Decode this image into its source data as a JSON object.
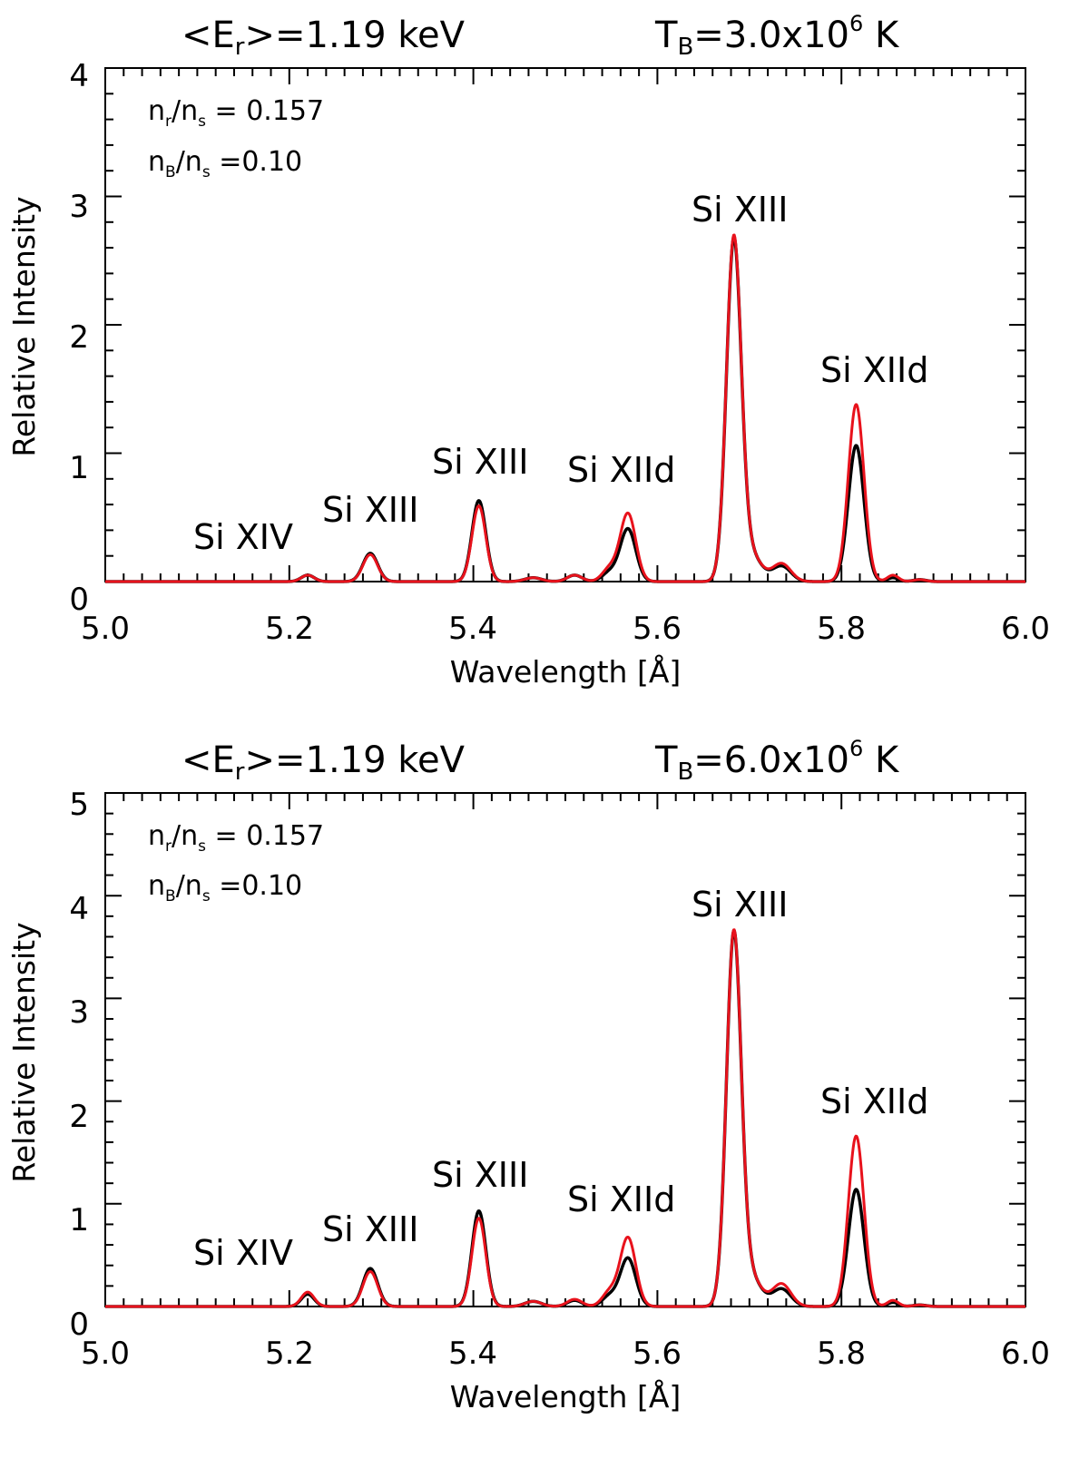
{
  "chart_data": [
    {
      "type": "line",
      "title": {
        "left_base": "<E",
        "left_sub": "r",
        "left_rest": ">=1.19 keV",
        "right_base": "T",
        "right_sub": "B",
        "right_mid": "=3.0x10",
        "right_sup": "6",
        "right_rest": " K"
      },
      "xlabel": "Wavelength [Å]",
      "ylabel": "Relative Intensity",
      "xlim": [
        5.0,
        6.0
      ],
      "ylim": [
        0,
        4
      ],
      "xticks": [
        "5.0",
        "5.2",
        "5.4",
        "5.6",
        "5.8",
        "6.0"
      ],
      "yticks": [
        "0",
        "1",
        "2",
        "3",
        "4"
      ],
      "annotations": [
        {
          "num": "n",
          "num_sub": "r",
          "den": "n",
          "den_sub": "s",
          "value": " = 0.157"
        },
        {
          "num": "n",
          "num_sub": "B",
          "den": "n",
          "den_sub": "s",
          "value": " =0.10"
        }
      ],
      "line_labels": [
        "Si XIV",
        "Si XIII",
        "Si XIII",
        "Si XIId",
        "Si XIII",
        "Si XIId"
      ],
      "series": [
        {
          "name": "black",
          "color": "#000000",
          "peaks": [
            [
              5.22,
              0.05,
              0.007
            ],
            [
              5.288,
              0.22,
              0.008
            ],
            [
              5.406,
              0.63,
              0.0075
            ],
            [
              5.465,
              0.03,
              0.009
            ],
            [
              5.51,
              0.05,
              0.008
            ],
            [
              5.548,
              0.07,
              0.008
            ],
            [
              5.568,
              0.41,
              0.0085
            ],
            [
              5.683,
              2.6,
              0.008
            ],
            [
              5.7,
              0.22,
              0.012
            ],
            [
              5.735,
              0.12,
              0.01
            ],
            [
              5.816,
              1.06,
              0.0085
            ],
            [
              5.856,
              0.03,
              0.006
            ],
            [
              5.885,
              0.015,
              0.007
            ]
          ]
        },
        {
          "name": "red",
          "color": "#e8121c",
          "peaks": [
            [
              5.22,
              0.05,
              0.007
            ],
            [
              5.288,
              0.21,
              0.008
            ],
            [
              5.406,
              0.59,
              0.0075
            ],
            [
              5.465,
              0.03,
              0.009
            ],
            [
              5.51,
              0.05,
              0.008
            ],
            [
              5.548,
              0.1,
              0.008
            ],
            [
              5.568,
              0.53,
              0.0085
            ],
            [
              5.683,
              2.62,
              0.008
            ],
            [
              5.7,
              0.22,
              0.012
            ],
            [
              5.735,
              0.14,
              0.01
            ],
            [
              5.816,
              1.38,
              0.0085
            ],
            [
              5.856,
              0.05,
              0.006
            ],
            [
              5.885,
              0.015,
              0.007
            ]
          ]
        }
      ]
    },
    {
      "type": "line",
      "title": {
        "left_base": "<E",
        "left_sub": "r",
        "left_rest": ">=1.19 keV",
        "right_base": "T",
        "right_sub": "B",
        "right_mid": "=6.0x10",
        "right_sup": "6",
        "right_rest": " K"
      },
      "xlabel": "Wavelength [Å]",
      "ylabel": "Relative Intensity",
      "xlim": [
        5.0,
        6.0
      ],
      "ylim": [
        0,
        5
      ],
      "xticks": [
        "5.0",
        "5.2",
        "5.4",
        "5.6",
        "5.8",
        "6.0"
      ],
      "yticks": [
        "0",
        "1",
        "2",
        "3",
        "4",
        "5"
      ],
      "annotations": [
        {
          "num": "n",
          "num_sub": "r",
          "den": "n",
          "den_sub": "s",
          "value": " = 0.157"
        },
        {
          "num": "n",
          "num_sub": "B",
          "den": "n",
          "den_sub": "s",
          "value": " =0.10"
        }
      ],
      "line_labels": [
        "Si XIV",
        "Si XIII",
        "Si XIII",
        "Si XIId",
        "Si XIII",
        "Si XIId"
      ],
      "series": [
        {
          "name": "black",
          "color": "#000000",
          "peaks": [
            [
              5.22,
              0.12,
              0.007
            ],
            [
              5.288,
              0.37,
              0.008
            ],
            [
              5.406,
              0.93,
              0.0075
            ],
            [
              5.465,
              0.05,
              0.009
            ],
            [
              5.51,
              0.06,
              0.008
            ],
            [
              5.548,
              0.1,
              0.008
            ],
            [
              5.568,
              0.47,
              0.0085
            ],
            [
              5.683,
              3.55,
              0.008
            ],
            [
              5.7,
              0.3,
              0.012
            ],
            [
              5.735,
              0.17,
              0.01
            ],
            [
              5.816,
              1.14,
              0.0085
            ],
            [
              5.856,
              0.04,
              0.006
            ],
            [
              5.885,
              0.015,
              0.007
            ]
          ]
        },
        {
          "name": "red",
          "color": "#e8121c",
          "peaks": [
            [
              5.22,
              0.14,
              0.007
            ],
            [
              5.288,
              0.34,
              0.008
            ],
            [
              5.406,
              0.86,
              0.0075
            ],
            [
              5.465,
              0.05,
              0.009
            ],
            [
              5.51,
              0.07,
              0.008
            ],
            [
              5.548,
              0.14,
              0.008
            ],
            [
              5.568,
              0.67,
              0.0085
            ],
            [
              5.683,
              3.56,
              0.008
            ],
            [
              5.7,
              0.3,
              0.012
            ],
            [
              5.735,
              0.22,
              0.01
            ],
            [
              5.816,
              1.66,
              0.0085
            ],
            [
              5.856,
              0.06,
              0.006
            ],
            [
              5.885,
              0.015,
              0.007
            ]
          ]
        }
      ]
    }
  ]
}
